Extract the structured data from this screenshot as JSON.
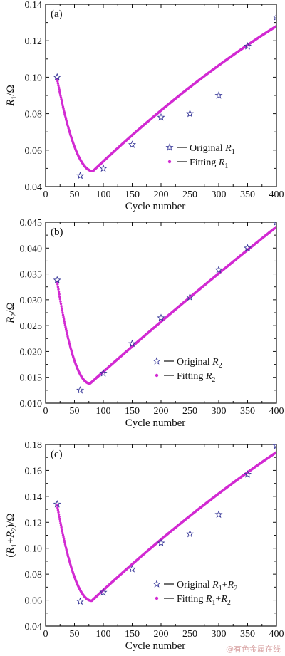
{
  "chart_data": [
    {
      "type": "scatter",
      "panel_label": "(a)",
      "ylabel": {
        "main": "R",
        "sub": "1",
        "unit": "/Ω"
      },
      "xlabel": "Cycle number",
      "xlim": [
        0,
        400
      ],
      "ylim": [
        0.04,
        0.14
      ],
      "xticks": [
        0,
        50,
        100,
        150,
        200,
        250,
        300,
        350,
        400
      ],
      "yticks": [
        0.04,
        0.06,
        0.08,
        0.1,
        0.12,
        0.14
      ],
      "ytick_labels": [
        "0.04",
        "0.06",
        "0.08",
        "0.10",
        "0.12",
        "0.14"
      ],
      "legend_position": "center-right",
      "series": [
        {
          "name": "Original R1",
          "label_main": "Original ",
          "label_var": "R",
          "label_sub": "1",
          "label_rest": "",
          "marker": "star",
          "color": "#3a3a9a",
          "x": [
            20,
            60,
            100,
            150,
            200,
            250,
            300,
            350,
            400
          ],
          "y": [
            0.1,
            0.046,
            0.05,
            0.063,
            0.078,
            0.08,
            0.09,
            0.117,
            0.133
          ]
        },
        {
          "name": "Fitting R1",
          "label_main": "Fitting ",
          "label_var": "R",
          "label_sub": "1",
          "label_rest": "",
          "marker": "dot-line",
          "color": "#d22ad2",
          "fit": {
            "x0": 20,
            "x1": 400,
            "xmin": 82,
            "ymin": 0.0485,
            "y_start": 0.099,
            "y_end": 0.128,
            "bend_bias": 0.66
          }
        }
      ]
    },
    {
      "type": "scatter",
      "panel_label": "(b)",
      "ylabel": {
        "main": "R",
        "sub": "2",
        "unit": "/Ω"
      },
      "xlabel": "Cycle number",
      "xlim": [
        0,
        400
      ],
      "ylim": [
        0.01,
        0.045
      ],
      "xticks": [
        0,
        50,
        100,
        150,
        200,
        250,
        300,
        350,
        400
      ],
      "yticks": [
        0.01,
        0.015,
        0.02,
        0.025,
        0.03,
        0.035,
        0.04,
        0.045
      ],
      "ytick_labels": [
        "0.010",
        "0.015",
        "0.020",
        "0.025",
        "0.030",
        "0.035",
        "0.040",
        "0.045"
      ],
      "legend_position": "lower-right",
      "series": [
        {
          "name": "Original R2",
          "label_main": "Original ",
          "label_var": "R",
          "label_sub": "2",
          "label_rest": "",
          "marker": "star",
          "color": "#3a3a9a",
          "x": [
            20,
            60,
            100,
            150,
            200,
            250,
            300,
            350,
            400
          ],
          "y": [
            0.0338,
            0.0125,
            0.0158,
            0.0215,
            0.0265,
            0.0305,
            0.0358,
            0.04,
            0.045
          ]
        },
        {
          "name": "Fitting R2",
          "label_main": "Fitting ",
          "label_var": "R",
          "label_sub": "2",
          "label_rest": "",
          "marker": "dot-line",
          "color": "#d22ad2",
          "fit": {
            "x0": 20,
            "x1": 400,
            "xmin": 77,
            "ymin": 0.0138,
            "y_start": 0.0335,
            "y_end": 0.0441,
            "bend_bias": 0.46
          }
        }
      ]
    },
    {
      "type": "scatter",
      "panel_label": "(c)",
      "ylabel": {
        "main": "(R",
        "sub1": "1",
        "mid": "+R",
        "sub2": "2",
        "unit": ")/Ω"
      },
      "xlabel": "Cycle number",
      "xlim": [
        0,
        400
      ],
      "ylim": [
        0.04,
        0.18
      ],
      "xticks": [
        0,
        50,
        100,
        150,
        200,
        250,
        300,
        350,
        400
      ],
      "yticks": [
        0.04,
        0.06,
        0.08,
        0.1,
        0.12,
        0.14,
        0.16,
        0.18
      ],
      "ytick_labels": [
        "0.04",
        "0.06",
        "0.08",
        "0.10",
        "0.12",
        "0.14",
        "0.16",
        "0.18"
      ],
      "legend_position": "lower-right",
      "series": [
        {
          "name": "Original R1+R2",
          "label_main": "Original ",
          "label_var": "R",
          "label_sub": "1",
          "label_rest": "+R",
          "label_sub2": "2",
          "marker": "star",
          "color": "#3a3a9a",
          "x": [
            20,
            60,
            100,
            150,
            200,
            250,
            300,
            350,
            400
          ],
          "y": [
            0.134,
            0.059,
            0.066,
            0.084,
            0.104,
            0.111,
            0.126,
            0.157,
            0.179
          ]
        },
        {
          "name": "Fitting R1+R2",
          "label_main": "Fitting ",
          "label_var": "R",
          "label_sub": "1",
          "label_rest": "+R",
          "label_sub2": "2",
          "marker": "dot-line",
          "color": "#d22ad2",
          "fit": {
            "x0": 20,
            "x1": 400,
            "xmin": 80,
            "ymin": 0.0595,
            "y_start": 0.133,
            "y_end": 0.174,
            "bend_bias": 0.6
          }
        }
      ]
    }
  ],
  "watermark": "@有色金属在线"
}
